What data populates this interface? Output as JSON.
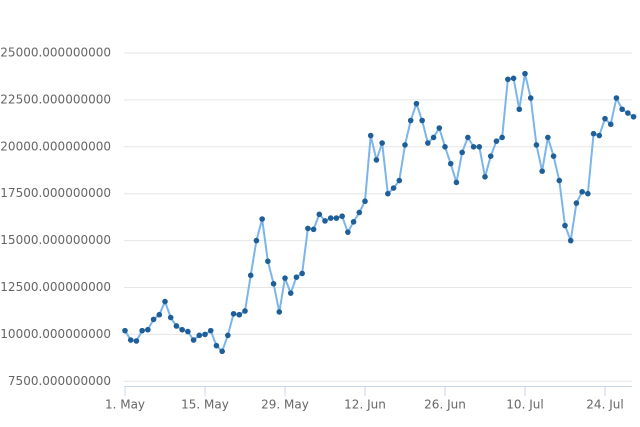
{
  "chart_data": {
    "type": "line",
    "categories": [
      "1. May",
      null,
      null,
      null,
      null,
      null,
      null,
      null,
      null,
      null,
      null,
      null,
      null,
      null,
      "15. May",
      null,
      null,
      null,
      null,
      null,
      null,
      null,
      null,
      null,
      null,
      null,
      null,
      null,
      "29. May",
      null,
      null,
      null,
      null,
      null,
      null,
      null,
      null,
      null,
      null,
      null,
      null,
      null,
      "12. Jun",
      null,
      null,
      null,
      null,
      null,
      null,
      null,
      null,
      null,
      null,
      null,
      null,
      null,
      "26. Jun",
      null,
      null,
      null,
      null,
      null,
      null,
      null,
      null,
      null,
      null,
      null,
      null,
      null,
      "10. Jul",
      null,
      null,
      null,
      null,
      null,
      null,
      null,
      null,
      null,
      null,
      null,
      null,
      null,
      "24. Jul",
      null,
      null,
      null,
      null,
      null
    ],
    "series": [
      {
        "color": "#7cb5ec",
        "marker_color": "#1f5f99",
        "values": [
          10200,
          9700,
          9650,
          10200,
          10250,
          10800,
          11050,
          11750,
          10900,
          10450,
          10250,
          10150,
          9700,
          9950,
          10000,
          10200,
          9400,
          9100,
          9950,
          11100,
          11050,
          11250,
          13150,
          15000,
          16150,
          13900,
          12700,
          11200,
          13000,
          12200,
          13050,
          13250,
          15650,
          15600,
          16400,
          16050,
          16200,
          16200,
          16300,
          15450,
          16000,
          16500,
          17100,
          20600,
          19300,
          20200,
          17500,
          17800,
          18200,
          20100,
          21400,
          22300,
          21400,
          20200,
          20500,
          21000,
          20000,
          19100,
          18100,
          19700,
          20500,
          20000,
          20000,
          18400,
          19500,
          20300,
          20500,
          23600,
          23650,
          22000,
          23900,
          22600,
          20100,
          18700,
          20500,
          19500,
          18200,
          15800,
          15000,
          17000,
          17600,
          17500,
          20700,
          20600,
          21500,
          21200,
          22600,
          22000,
          21800,
          21600
        ]
      }
    ],
    "ylim": [
      7250,
      25000
    ],
    "yticks": [
      {
        "value": 7500,
        "label": "7500.000000000"
      },
      {
        "value": 10000,
        "label": "10000.000000000"
      },
      {
        "value": 12500,
        "label": "12500.000000000"
      },
      {
        "value": 15000,
        "label": "15000.000000000"
      },
      {
        "value": 17500,
        "label": "17500.000000000"
      },
      {
        "value": 20000,
        "label": "20000.000000000"
      },
      {
        "value": 22500,
        "label": "22500.000000000"
      },
      {
        "value": 25000,
        "label": "25000.000000000"
      }
    ],
    "grid": true
  }
}
